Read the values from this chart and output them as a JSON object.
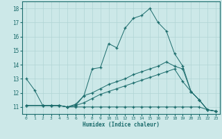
{
  "xlabel": "Humidex (Indice chaleur)",
  "bg_color": "#cce8e8",
  "grid_color": "#b0d4d4",
  "line_color": "#1a6b6b",
  "xlim": [
    -0.5,
    23.5
  ],
  "ylim": [
    10.5,
    18.5
  ],
  "xticks": [
    0,
    1,
    2,
    3,
    4,
    5,
    6,
    7,
    8,
    9,
    10,
    11,
    12,
    13,
    14,
    15,
    16,
    17,
    18,
    19,
    20,
    21,
    22,
    23
  ],
  "yticks": [
    11,
    12,
    13,
    14,
    15,
    16,
    17,
    18
  ],
  "line1_x": [
    0,
    1,
    2,
    3,
    4,
    5,
    6,
    7,
    8,
    9,
    10,
    11,
    12,
    13,
    14,
    15,
    16,
    17,
    18,
    19,
    20,
    21,
    22,
    23
  ],
  "line1_y": [
    13.0,
    12.2,
    11.1,
    11.1,
    11.1,
    11.0,
    11.2,
    11.8,
    13.7,
    13.8,
    15.5,
    15.2,
    16.6,
    17.3,
    17.5,
    18.0,
    17.0,
    16.4,
    14.8,
    13.9,
    12.1,
    11.5,
    10.8,
    10.7
  ],
  "line2_x": [
    0,
    2,
    3,
    4,
    5,
    6,
    7,
    8,
    9,
    10,
    11,
    12,
    13,
    14,
    15,
    16,
    17,
    18,
    19,
    20,
    21,
    22,
    23
  ],
  "line2_y": [
    11.1,
    11.1,
    11.1,
    11.1,
    11.0,
    11.1,
    11.8,
    12.0,
    12.3,
    12.6,
    12.8,
    13.0,
    13.3,
    13.5,
    13.7,
    13.9,
    14.2,
    13.9,
    13.7,
    12.1,
    11.5,
    10.8,
    10.7
  ],
  "line3_x": [
    0,
    2,
    3,
    4,
    5,
    6,
    7,
    8,
    9,
    10,
    11,
    12,
    13,
    14,
    15,
    16,
    17,
    18,
    19,
    20,
    21,
    22,
    23
  ],
  "line3_y": [
    11.1,
    11.1,
    11.1,
    11.1,
    11.0,
    11.1,
    11.3,
    11.6,
    11.9,
    12.1,
    12.3,
    12.5,
    12.7,
    12.9,
    13.1,
    13.3,
    13.5,
    13.7,
    12.8,
    12.1,
    11.5,
    10.8,
    10.7
  ],
  "line4_x": [
    0,
    2,
    3,
    4,
    5,
    6,
    7,
    8,
    9,
    10,
    11,
    12,
    13,
    14,
    15,
    16,
    17,
    18,
    19,
    20,
    21,
    22,
    23
  ],
  "line4_y": [
    11.1,
    11.1,
    11.1,
    11.1,
    11.0,
    11.0,
    11.0,
    11.0,
    11.0,
    11.0,
    11.0,
    11.0,
    11.0,
    11.0,
    11.0,
    11.0,
    11.0,
    11.0,
    11.0,
    11.0,
    11.0,
    10.8,
    10.7
  ]
}
